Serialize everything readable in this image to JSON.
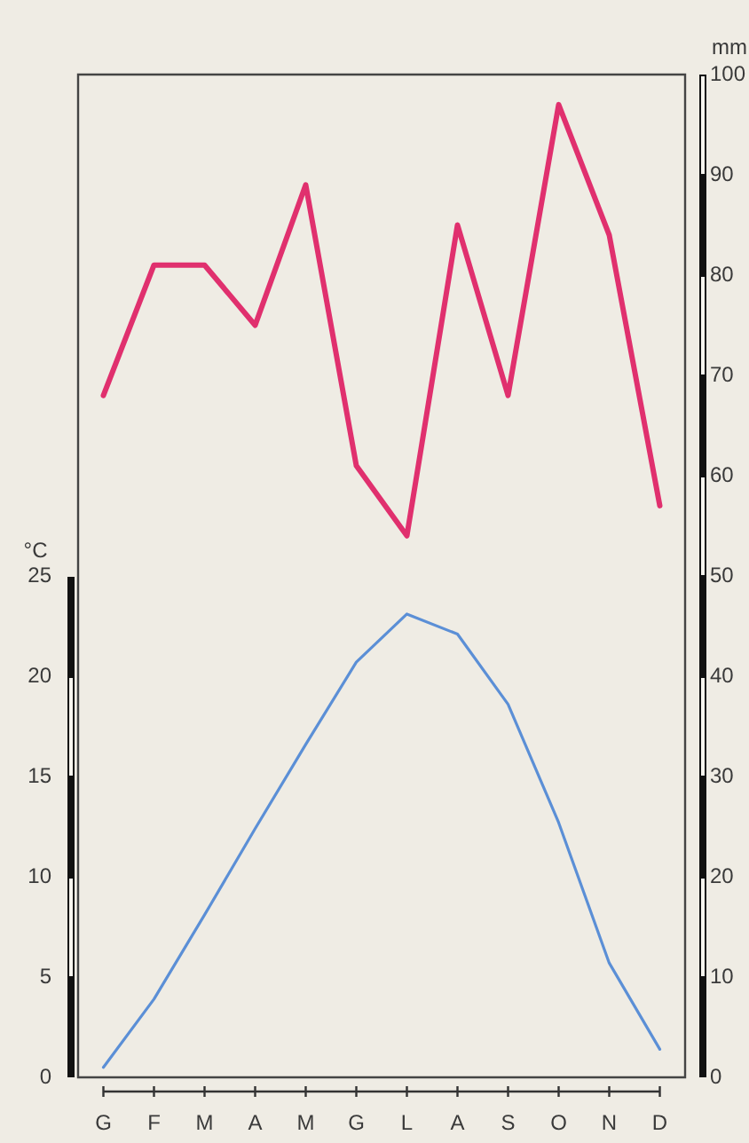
{
  "chart_data": {
    "type": "line",
    "ylabel": "°C",
    "y2label": "mm",
    "categories": [
      "G",
      "F",
      "M",
      "A",
      "M",
      "G",
      "L",
      "A",
      "S",
      "O",
      "N",
      "D"
    ],
    "series": [
      {
        "color": "#5b8fd6",
        "axis": "y",
        "values": [
          0.5,
          3.9,
          8.1,
          12.4,
          16.6,
          20.7,
          23.1,
          22.1,
          18.6,
          12.7,
          5.7,
          1.4
        ]
      },
      {
        "color": "#e0306e",
        "axis": "y2",
        "values": [
          68,
          81,
          81,
          75,
          89,
          61,
          54,
          85,
          68,
          97,
          84,
          57
        ]
      }
    ],
    "ylim": [
      0,
      50
    ],
    "yticks": [
      0,
      5,
      10,
      15,
      20,
      25
    ],
    "y2lim": [
      0,
      100
    ],
    "y2ticks": [
      0,
      10,
      20,
      30,
      40,
      50,
      60,
      70,
      80,
      90,
      100
    ],
    "marker": "none",
    "line_style": "solid"
  }
}
